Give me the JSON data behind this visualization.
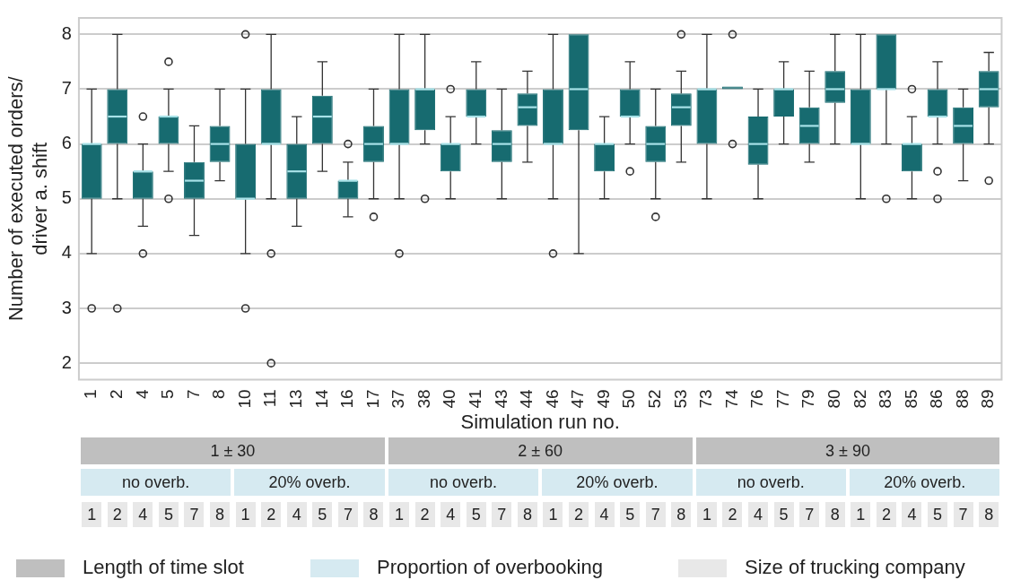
{
  "chart_data": {
    "type": "box",
    "xlabel": "Simulation run no.",
    "ylabel": "Number of executed orders/\ndriver a. shift",
    "categories": [
      "1",
      "2",
      "4",
      "5",
      "7",
      "8",
      "10",
      "11",
      "13",
      "14",
      "16",
      "17",
      "37",
      "38",
      "40",
      "41",
      "43",
      "44",
      "46",
      "47",
      "49",
      "50",
      "52",
      "53",
      "73",
      "74",
      "76",
      "77",
      "79",
      "80",
      "82",
      "83",
      "85",
      "86",
      "88",
      "89"
    ],
    "color": "#176b70",
    "ylim": [
      1.7,
      8.3
    ],
    "yticks": [
      2,
      3,
      4,
      5,
      6,
      7,
      8
    ],
    "grid": "y",
    "boxes": [
      {
        "low": 4,
        "q1": 5,
        "median": 6,
        "q3": 6,
        "high": 7,
        "outliers": [
          3
        ]
      },
      {
        "low": 5,
        "q1": 6,
        "median": 6.5,
        "q3": 7,
        "high": 8,
        "outliers": [
          3
        ]
      },
      {
        "low": 4.5,
        "q1": 5,
        "median": 5.5,
        "q3": 5.5,
        "high": 6,
        "outliers": [
          6.5,
          4
        ]
      },
      {
        "low": 5.5,
        "q1": 6,
        "median": 6.5,
        "q3": 6.5,
        "high": 7,
        "outliers": [
          7.5,
          5
        ]
      },
      {
        "low": 4.33,
        "q1": 5,
        "median": 5.33,
        "q3": 5.67,
        "high": 6.33
      },
      {
        "low": 5.33,
        "q1": 5.67,
        "median": 6,
        "q3": 6.33,
        "high": 7
      },
      {
        "low": 4,
        "q1": 5,
        "median": 5,
        "q3": 6,
        "high": 7,
        "outliers": [
          8,
          3
        ]
      },
      {
        "low": 5,
        "q1": 6,
        "median": 6,
        "q3": 7,
        "high": 8,
        "outliers": [
          4,
          2
        ]
      },
      {
        "low": 4.5,
        "q1": 5,
        "median": 5.5,
        "q3": 6,
        "high": 6.5
      },
      {
        "low": 5.5,
        "q1": 6,
        "median": 6.5,
        "q3": 6.88,
        "high": 7.5
      },
      {
        "low": 4.67,
        "q1": 5,
        "median": 5.33,
        "q3": 5.33,
        "high": 5.67,
        "outliers": [
          6
        ]
      },
      {
        "low": 5,
        "q1": 5.67,
        "median": 6,
        "q3": 6.33,
        "high": 7,
        "outliers": [
          4.67
        ]
      },
      {
        "low": 5,
        "q1": 6,
        "median": 6,
        "q3": 7,
        "high": 8,
        "outliers": [
          4
        ]
      },
      {
        "low": 6,
        "q1": 6.25,
        "median": 7,
        "q3": 7,
        "high": 8,
        "outliers": [
          5
        ]
      },
      {
        "low": 5,
        "q1": 5.5,
        "median": 6,
        "q3": 6,
        "high": 6.5,
        "outliers": [
          7
        ]
      },
      {
        "low": 6,
        "q1": 6.5,
        "median": 6.5,
        "q3": 7,
        "high": 7.5
      },
      {
        "low": 5,
        "q1": 5.67,
        "median": 6,
        "q3": 6.25,
        "high": 7
      },
      {
        "low": 5.67,
        "q1": 6.33,
        "median": 6.67,
        "q3": 6.92,
        "high": 7.33
      },
      {
        "low": 5,
        "q1": 6,
        "median": 6,
        "q3": 7,
        "high": 8,
        "outliers": [
          4
        ]
      },
      {
        "low": 4,
        "q1": 6.25,
        "median": 7,
        "q3": 8,
        "high": 8
      },
      {
        "low": 5,
        "q1": 5.5,
        "median": 6,
        "q3": 6,
        "high": 6.5
      },
      {
        "low": 6,
        "q1": 6.5,
        "median": 6.5,
        "q3": 7,
        "high": 7.5,
        "outliers": [
          5.5
        ]
      },
      {
        "low": 5,
        "q1": 5.67,
        "median": 6,
        "q3": 6.33,
        "high": 7,
        "outliers": [
          4.67
        ]
      },
      {
        "low": 5.67,
        "q1": 6.33,
        "median": 6.67,
        "q3": 6.92,
        "high": 7.33,
        "outliers": [
          8
        ]
      },
      {
        "low": 5,
        "q1": 6,
        "median": 7,
        "q3": 7,
        "high": 8
      },
      {
        "low": 7,
        "q1": 7,
        "median": 7,
        "q3": 7,
        "high": 7,
        "outliers": [
          8,
          6
        ]
      },
      {
        "low": 5,
        "q1": 5.62,
        "median": 6,
        "q3": 6.5,
        "high": 7
      },
      {
        "low": 6,
        "q1": 6.5,
        "median": 7,
        "q3": 7,
        "high": 7.5
      },
      {
        "low": 5.67,
        "q1": 6,
        "median": 6.33,
        "q3": 6.67,
        "high": 7.33
      },
      {
        "low": 6,
        "q1": 6.75,
        "median": 7,
        "q3": 7.33,
        "high": 8
      },
      {
        "low": 5,
        "q1": 6,
        "median": 6,
        "q3": 7,
        "high": 8
      },
      {
        "low": 6,
        "q1": 7,
        "median": 7,
        "q3": 8,
        "high": 8,
        "outliers": [
          5
        ]
      },
      {
        "low": 5,
        "q1": 5.5,
        "median": 6,
        "q3": 6,
        "high": 6.5,
        "outliers": [
          7
        ]
      },
      {
        "low": 6,
        "q1": 6.5,
        "median": 6.5,
        "q3": 7,
        "high": 7.5,
        "outliers": [
          5.5,
          5
        ]
      },
      {
        "low": 5.33,
        "q1": 6,
        "median": 6.33,
        "q3": 6.67,
        "high": 7
      },
      {
        "low": 6,
        "q1": 6.67,
        "median": 7,
        "q3": 7.33,
        "high": 7.67,
        "outliers": [
          5.33
        ]
      }
    ],
    "annotations": [
      "1 ± 30",
      "2 ± 60",
      "3 ± 90",
      "no overb.",
      "20% overb.",
      "no overb.",
      "20% overb.",
      "no overb.",
      "20% overb.",
      "1",
      "2",
      "4",
      "5",
      "7",
      "8",
      "1",
      "2",
      "4",
      "5",
      "7",
      "8",
      "1",
      "2",
      "4",
      "5",
      "7",
      "8",
      "1",
      "2",
      "4",
      "5",
      "7",
      "8",
      "1",
      "2",
      "4",
      "5",
      "7",
      "8",
      "1",
      "2",
      "4",
      "5",
      "7",
      "8",
      "Length of time slot",
      "Proportion of overbooking",
      "Size of trucking company"
    ]
  }
}
